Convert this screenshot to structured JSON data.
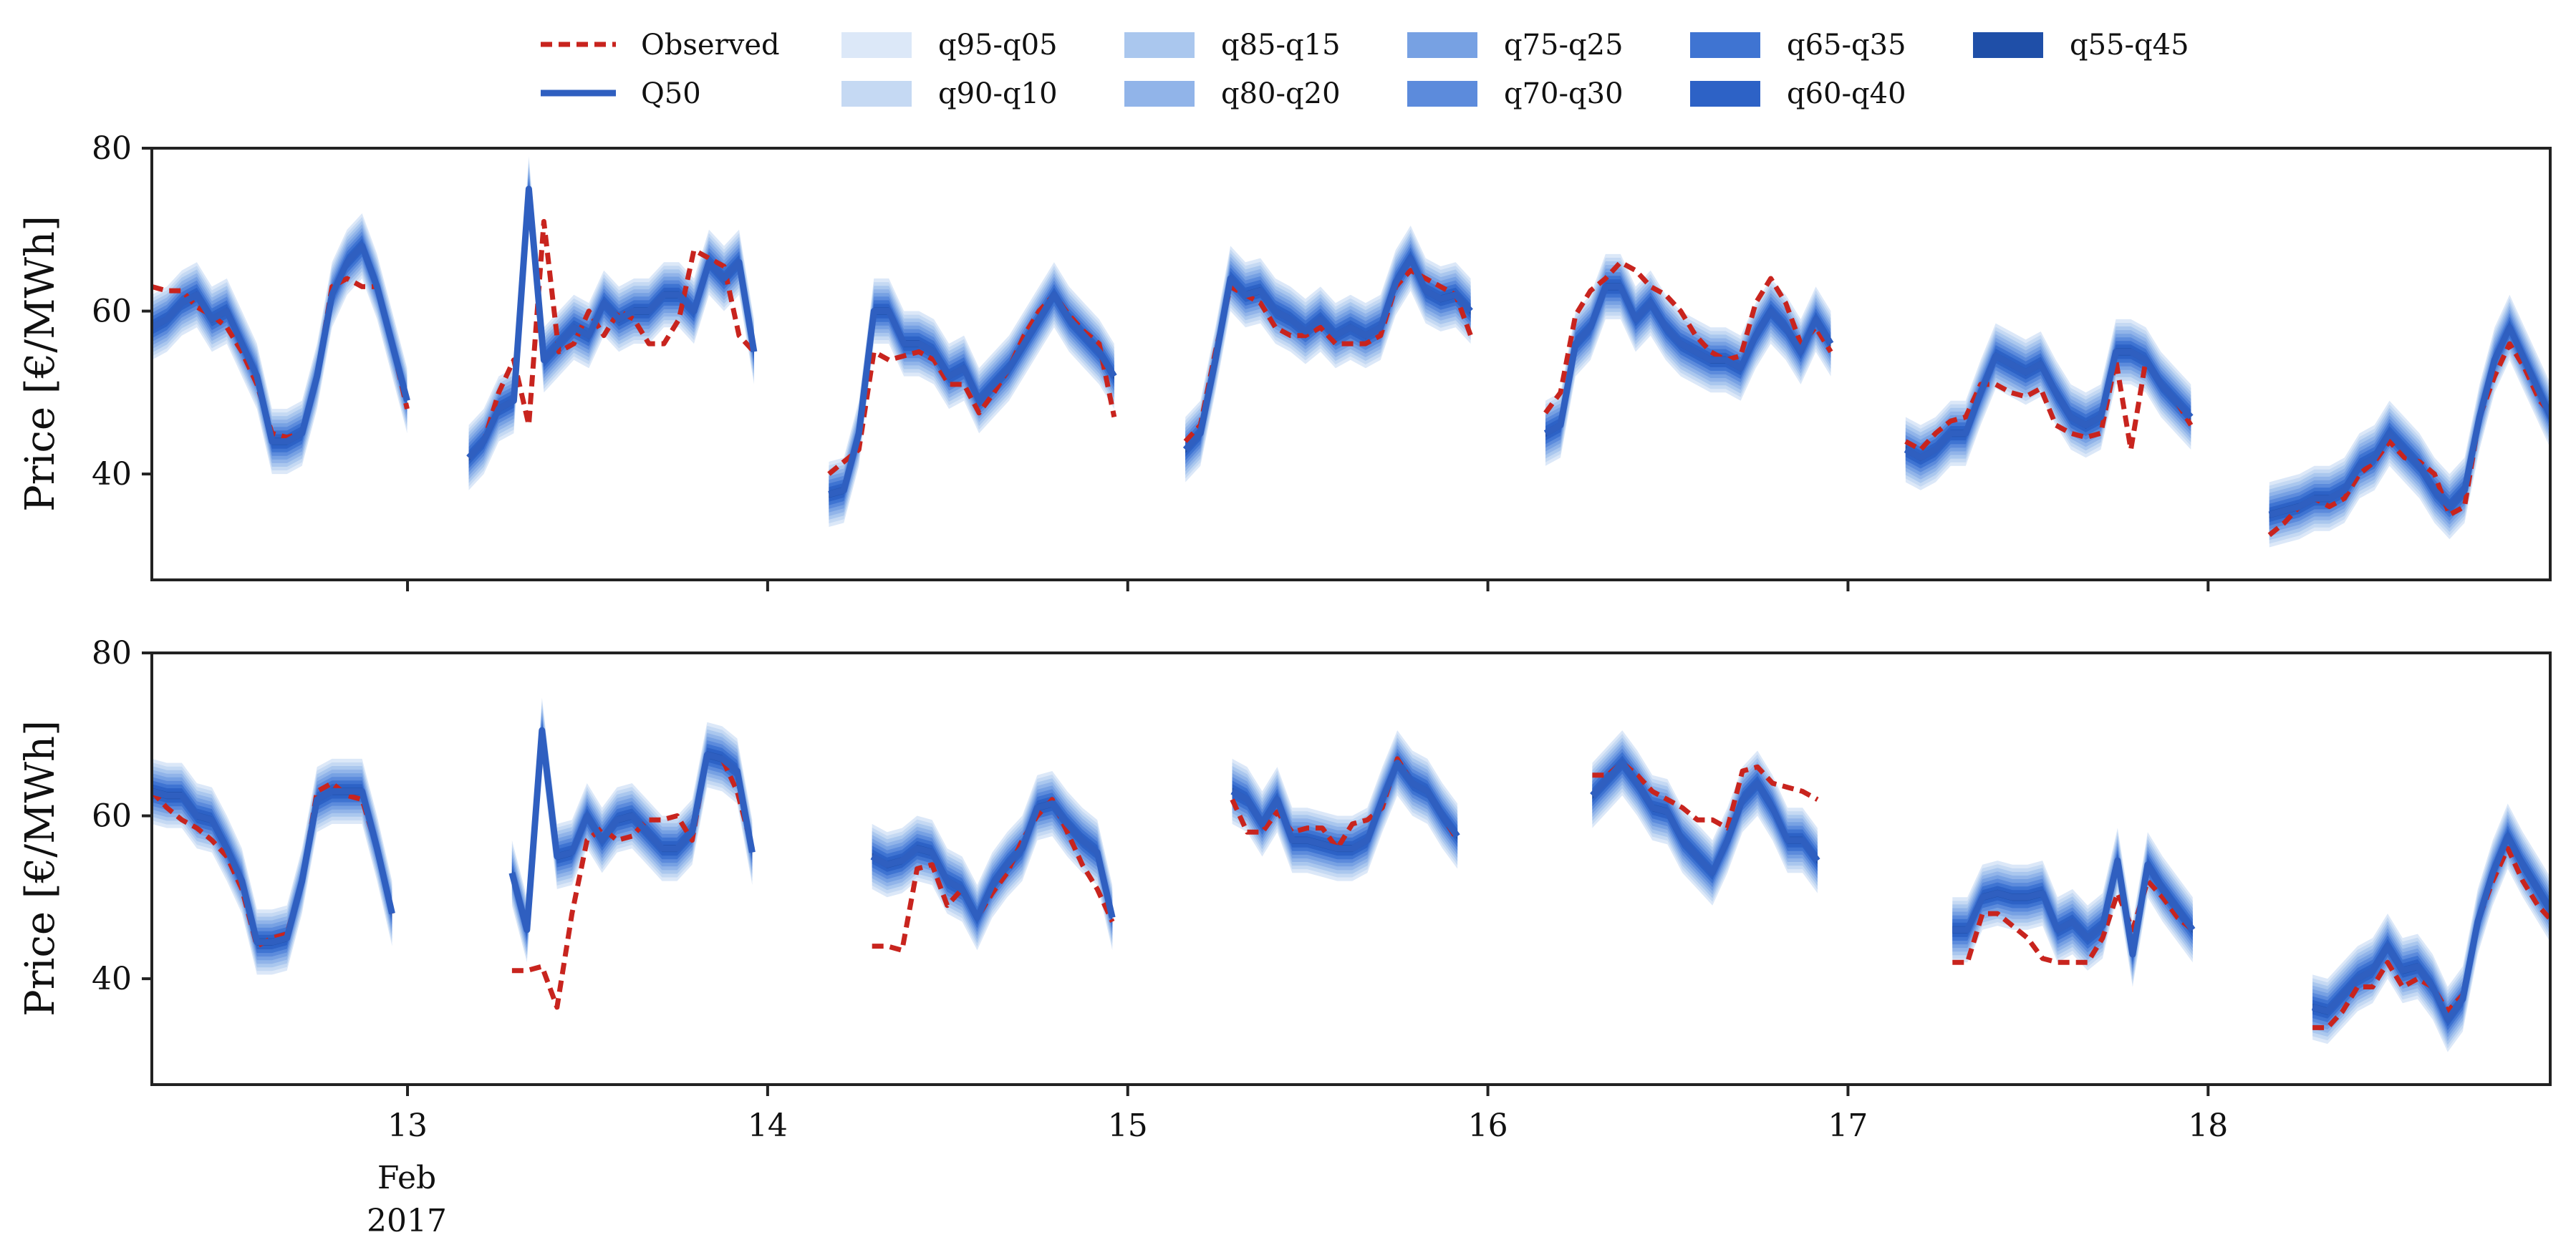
{
  "chart_data": {
    "type": "line",
    "x_axis": {
      "ticks": [
        "13",
        "14",
        "15",
        "16",
        "17",
        "18"
      ],
      "tick_values": [
        13,
        14,
        15,
        16,
        17,
        18
      ],
      "xlim": [
        12.29,
        18.95
      ],
      "sub_labels": [
        "Feb",
        "2017"
      ]
    },
    "y_axis": {
      "label": "Price [€/MWh]",
      "ticks": [
        "40",
        "60",
        "80"
      ],
      "tick_values": [
        40,
        60,
        80
      ],
      "ylim": [
        27,
        80
      ]
    },
    "legend": {
      "observed": "Observed",
      "median": "Q50",
      "bands": [
        "q95-q05",
        "q90-q10",
        "q85-q15",
        "q80-q20",
        "q75-q25",
        "q70-q30",
        "q65-q35",
        "q60-q40",
        "q55-q45"
      ]
    },
    "colors": {
      "observed": "#c8241e",
      "median": "#2f5fc0",
      "bands": [
        "#dce8f8",
        "#c5d9f3",
        "#aac7ee",
        "#91b4e9",
        "#77a1e3",
        "#5c8bdc",
        "#3f74d2",
        "#2d62c6",
        "#1f4fa8"
      ]
    },
    "band_halfwidth_scale": 4.0,
    "panels": [
      {
        "days": [
          {
            "start": 12.29,
            "step": 0.0417,
            "q50": [
              58,
              59,
              61,
              62,
              59,
              60,
              56,
              52,
              44,
              44,
              45,
              52,
              62,
              66,
              68,
              63,
              56,
              49
            ],
            "obs": [
              63,
              62.5,
              62.5,
              60.5,
              59.5,
              58,
              55,
              51,
              45,
              44.5,
              45,
              52,
              63,
              64,
              63,
              63,
              56,
              48
            ]
          },
          {
            "start": 13.17,
            "step": 0.0417,
            "q50": [
              42,
              44,
              48,
              49,
              75,
              54,
              56,
              58,
              57,
              61,
              59,
              60,
              60,
              62,
              62,
              60,
              66,
              64,
              66,
              55
            ],
            "obs": [
              42,
              44,
              50,
              54,
              46,
              71,
              55,
              56,
              60,
              57,
              60,
              59,
              56,
              56,
              59,
              67.5,
              66.5,
              65.5,
              57,
              55
            ]
          },
          {
            "start": 14.17,
            "step": 0.0417,
            "q50": [
              37.5,
              38,
              45,
              60,
              60,
              56,
              56,
              55,
              52,
              53,
              49,
              51,
              53,
              56,
              59,
              62,
              59,
              57,
              55,
              52
            ],
            "obs": [
              40,
              41.5,
              43,
              55,
              54,
              54.5,
              55,
              54,
              51,
              51,
              47.5,
              50,
              53,
              57,
              60,
              62,
              59.5,
              57.5,
              56,
              47
            ]
          },
          {
            "start": 15.16,
            "step": 0.0417,
            "q50": [
              43,
              45,
              54,
              64,
              62,
              62.5,
              60,
              59,
              57.5,
              59,
              57,
              58,
              57,
              58,
              63.5,
              66.5,
              62.5,
              61.5,
              62,
              60
            ],
            "obs": [
              44,
              46,
              55,
              63,
              62,
              61,
              58,
              57,
              57,
              58,
              56,
              56,
              56,
              57,
              63,
              65,
              64,
              63,
              62,
              57
            ]
          },
          {
            "start": 16.16,
            "step": 0.0417,
            "q50": [
              45,
              46,
              56,
              58,
              63,
              63,
              59,
              61,
              58,
              56,
              55,
              54,
              54,
              53,
              57,
              60,
              58,
              55,
              59,
              56
            ],
            "obs": [
              47.5,
              50,
              59.5,
              62.5,
              64,
              66,
              65,
              63,
              62,
              60,
              57,
              55,
              54,
              54.5,
              61,
              64,
              61,
              56,
              58,
              55
            ]
          },
          {
            "start": 17.16,
            "step": 0.0417,
            "q50": [
              43,
              42,
              43,
              45,
              45,
              50,
              54.5,
              53.5,
              52.5,
              53.5,
              50,
              47,
              46,
              47,
              55,
              55,
              54,
              51,
              49,
              47
            ],
            "obs": [
              44,
              43,
              45,
              46.5,
              47,
              51,
              51,
              50,
              49.5,
              50.5,
              46,
              45,
              44.5,
              45,
              54,
              43,
              54,
              51,
              49,
              46
            ]
          },
          {
            "start": 18.17,
            "step": 0.0417,
            "q50": [
              35,
              35.5,
              36,
              37,
              37,
              38,
              41,
              42,
              45,
              43,
              41,
              38,
              36,
              38,
              47,
              54,
              58,
              54,
              50,
              46
            ],
            "obs": [
              32.5,
              34,
              36,
              37,
              36,
              37,
              40,
              41.5,
              44,
              42,
              41.5,
              40,
              35,
              36,
              47,
              52,
              56,
              53,
              49,
              47
            ]
          }
        ]
      },
      {
        "days": [
          {
            "start": 12.29,
            "step": 0.0417,
            "q50": [
              63,
              62.5,
              62.5,
              60,
              59.5,
              56,
              52,
              44.5,
              44.5,
              45,
              52,
              62,
              63,
              63,
              63,
              56,
              48
            ],
            "obs": [
              63,
              61,
              59.5,
              58.5,
              57,
              55,
              51,
              44,
              45,
              45.5,
              52,
              63,
              64,
              62.5,
              62,
              56,
              48
            ]
          },
          {
            "start": 13.29,
            "step": 0.0417,
            "q50": [
              53,
              46,
              70.5,
              55,
              55.5,
              60,
              57,
              59.5,
              60,
              58,
              56,
              56,
              58,
              67.5,
              67,
              65.5,
              55.5
            ],
            "obs": [
              41,
              41,
              41.5,
              36.5,
              48,
              57,
              58.5,
              57,
              57.5,
              59.5,
              59.5,
              60,
              57,
              67.5,
              67,
              63,
              56
            ]
          },
          {
            "start": 14.29,
            "step": 0.0417,
            "q50": [
              55,
              54,
              54.5,
              56,
              55.5,
              52,
              51,
              47.5,
              51.5,
              54,
              56,
              61,
              61.5,
              59,
              57,
              55.5,
              47.5
            ],
            "obs": [
              44,
              44,
              43.5,
              53.5,
              54,
              49,
              51,
              47.5,
              50.5,
              53,
              57,
              60,
              62,
              58,
              54,
              51,
              47
            ]
          },
          {
            "start": 15.29,
            "step": 0.0417,
            "q50": [
              63,
              62,
              59,
              62,
              57,
              57,
              56.5,
              56,
              56,
              57,
              62,
              66.5,
              64,
              63,
              60,
              57.5
            ],
            "obs": [
              62,
              58,
              58,
              60.5,
              58,
              58.5,
              58.5,
              56,
              59,
              59.5,
              61,
              67,
              64,
              63,
              60,
              57
            ]
          },
          {
            "start": 16.29,
            "step": 0.0417,
            "q50": [
              62.5,
              64.5,
              66.5,
              64,
              61,
              60.5,
              57,
              55,
              53,
              57,
              62,
              64,
              61,
              57,
              57,
              54.5
            ],
            "obs": [
              65,
              65,
              66.5,
              65,
              63,
              62,
              61,
              59.5,
              59.5,
              58.5,
              65.5,
              66,
              64,
              63.5,
              63,
              62
            ]
          },
          {
            "start": 17.29,
            "step": 0.0417,
            "q50": [
              46,
              46,
              50,
              50.5,
              50,
              50,
              50.5,
              46,
              47,
              45,
              46.5,
              54.5,
              43,
              54,
              51,
              48.5,
              46
            ],
            "obs": [
              42,
              42,
              48,
              48,
              46.5,
              45,
              42.5,
              42,
              42,
              42,
              45,
              50.5,
              46,
              52,
              50,
              47.5,
              46
            ]
          },
          {
            "start": 18.29,
            "step": 0.0417,
            "q50": [
              36.5,
              36,
              38,
              40,
              41,
              44,
              41,
              41.5,
              39,
              35,
              37.5,
              47,
              53,
              57.5,
              54,
              51,
              48,
              46
            ],
            "obs": [
              34,
              34,
              36,
              39,
              39,
              42,
              39,
              40,
              39,
              36,
              38,
              47,
              52,
              56,
              52,
              49,
              47,
              46
            ]
          }
        ]
      }
    ]
  }
}
